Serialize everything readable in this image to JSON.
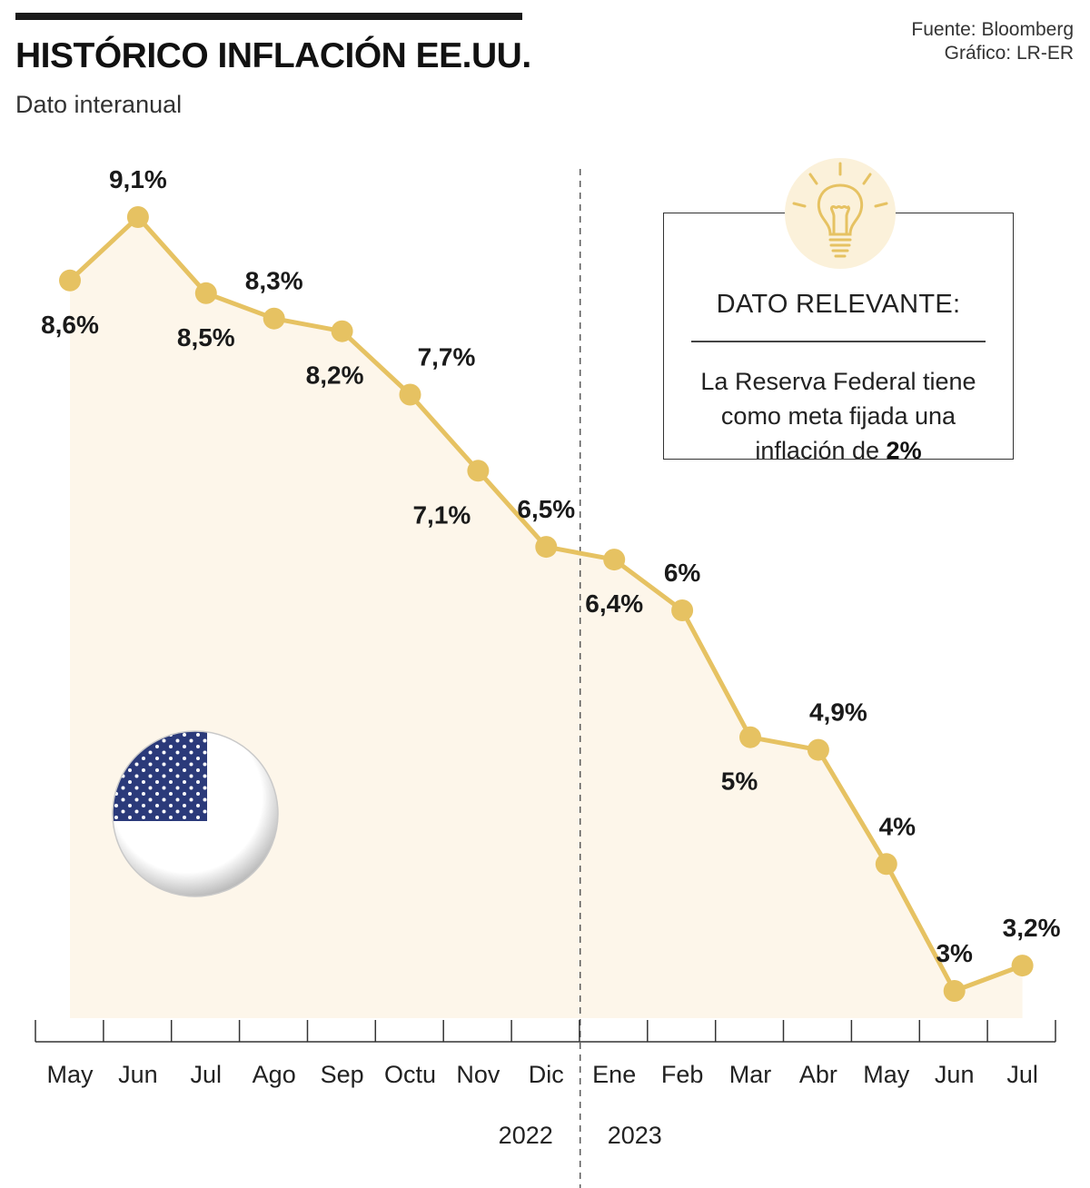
{
  "header": {
    "title": "HISTÓRICO INFLACIÓN EE.UU.",
    "subtitle": "Dato interanual",
    "source_line1": "Fuente: Bloomberg",
    "source_line2": "Gráfico: LR-ER"
  },
  "info": {
    "heading": "DATO RELEVANTE:",
    "body_text": "La Reserva Federal tiene como meta fijada una inflación de",
    "body_highlight": "2%"
  },
  "icons": {
    "bulb": "lightbulb-icon",
    "flag": "us-flag-icon"
  },
  "colors": {
    "line": "#e6c262",
    "area": "#fdf6ea",
    "bulb_circle": "#fbf1da",
    "axis": "#333333"
  },
  "chart_data": {
    "type": "area",
    "title": "HISTÓRICO INFLACIÓN EE.UU.",
    "subtitle": "Dato interanual",
    "xlabel": "",
    "ylabel": "",
    "categories": [
      "May",
      "Jun",
      "Jul",
      "Ago",
      "Sep",
      "Octu",
      "Nov",
      "Dic",
      "Ene",
      "Feb",
      "Mar",
      "Abr",
      "May",
      "Jun",
      "Jul"
    ],
    "values": [
      8.6,
      9.1,
      8.5,
      8.3,
      8.2,
      7.7,
      7.1,
      6.5,
      6.4,
      6.0,
      5.0,
      4.9,
      4.0,
      3.0,
      3.2
    ],
    "labels": [
      "8,6%",
      "9,1%",
      "8,5%",
      "8,3%",
      "8,2%",
      "7,7%",
      "7,1%",
      "6,5%",
      "6,4%",
      "6%",
      "5%",
      "4,9%",
      "4%",
      "3%",
      "3,2%"
    ],
    "label_positions": [
      "below",
      "above",
      "below",
      "above",
      "below",
      "above",
      "below",
      "above",
      "below",
      "above",
      "below",
      "above",
      "above",
      "above",
      "above"
    ],
    "year_groups": [
      {
        "label": "2022",
        "start": 0,
        "end": 7
      },
      {
        "label": "2023",
        "start": 8,
        "end": 14
      }
    ],
    "ylim": [
      1.5,
      9.6
    ],
    "grid": false,
    "legend": "none"
  }
}
